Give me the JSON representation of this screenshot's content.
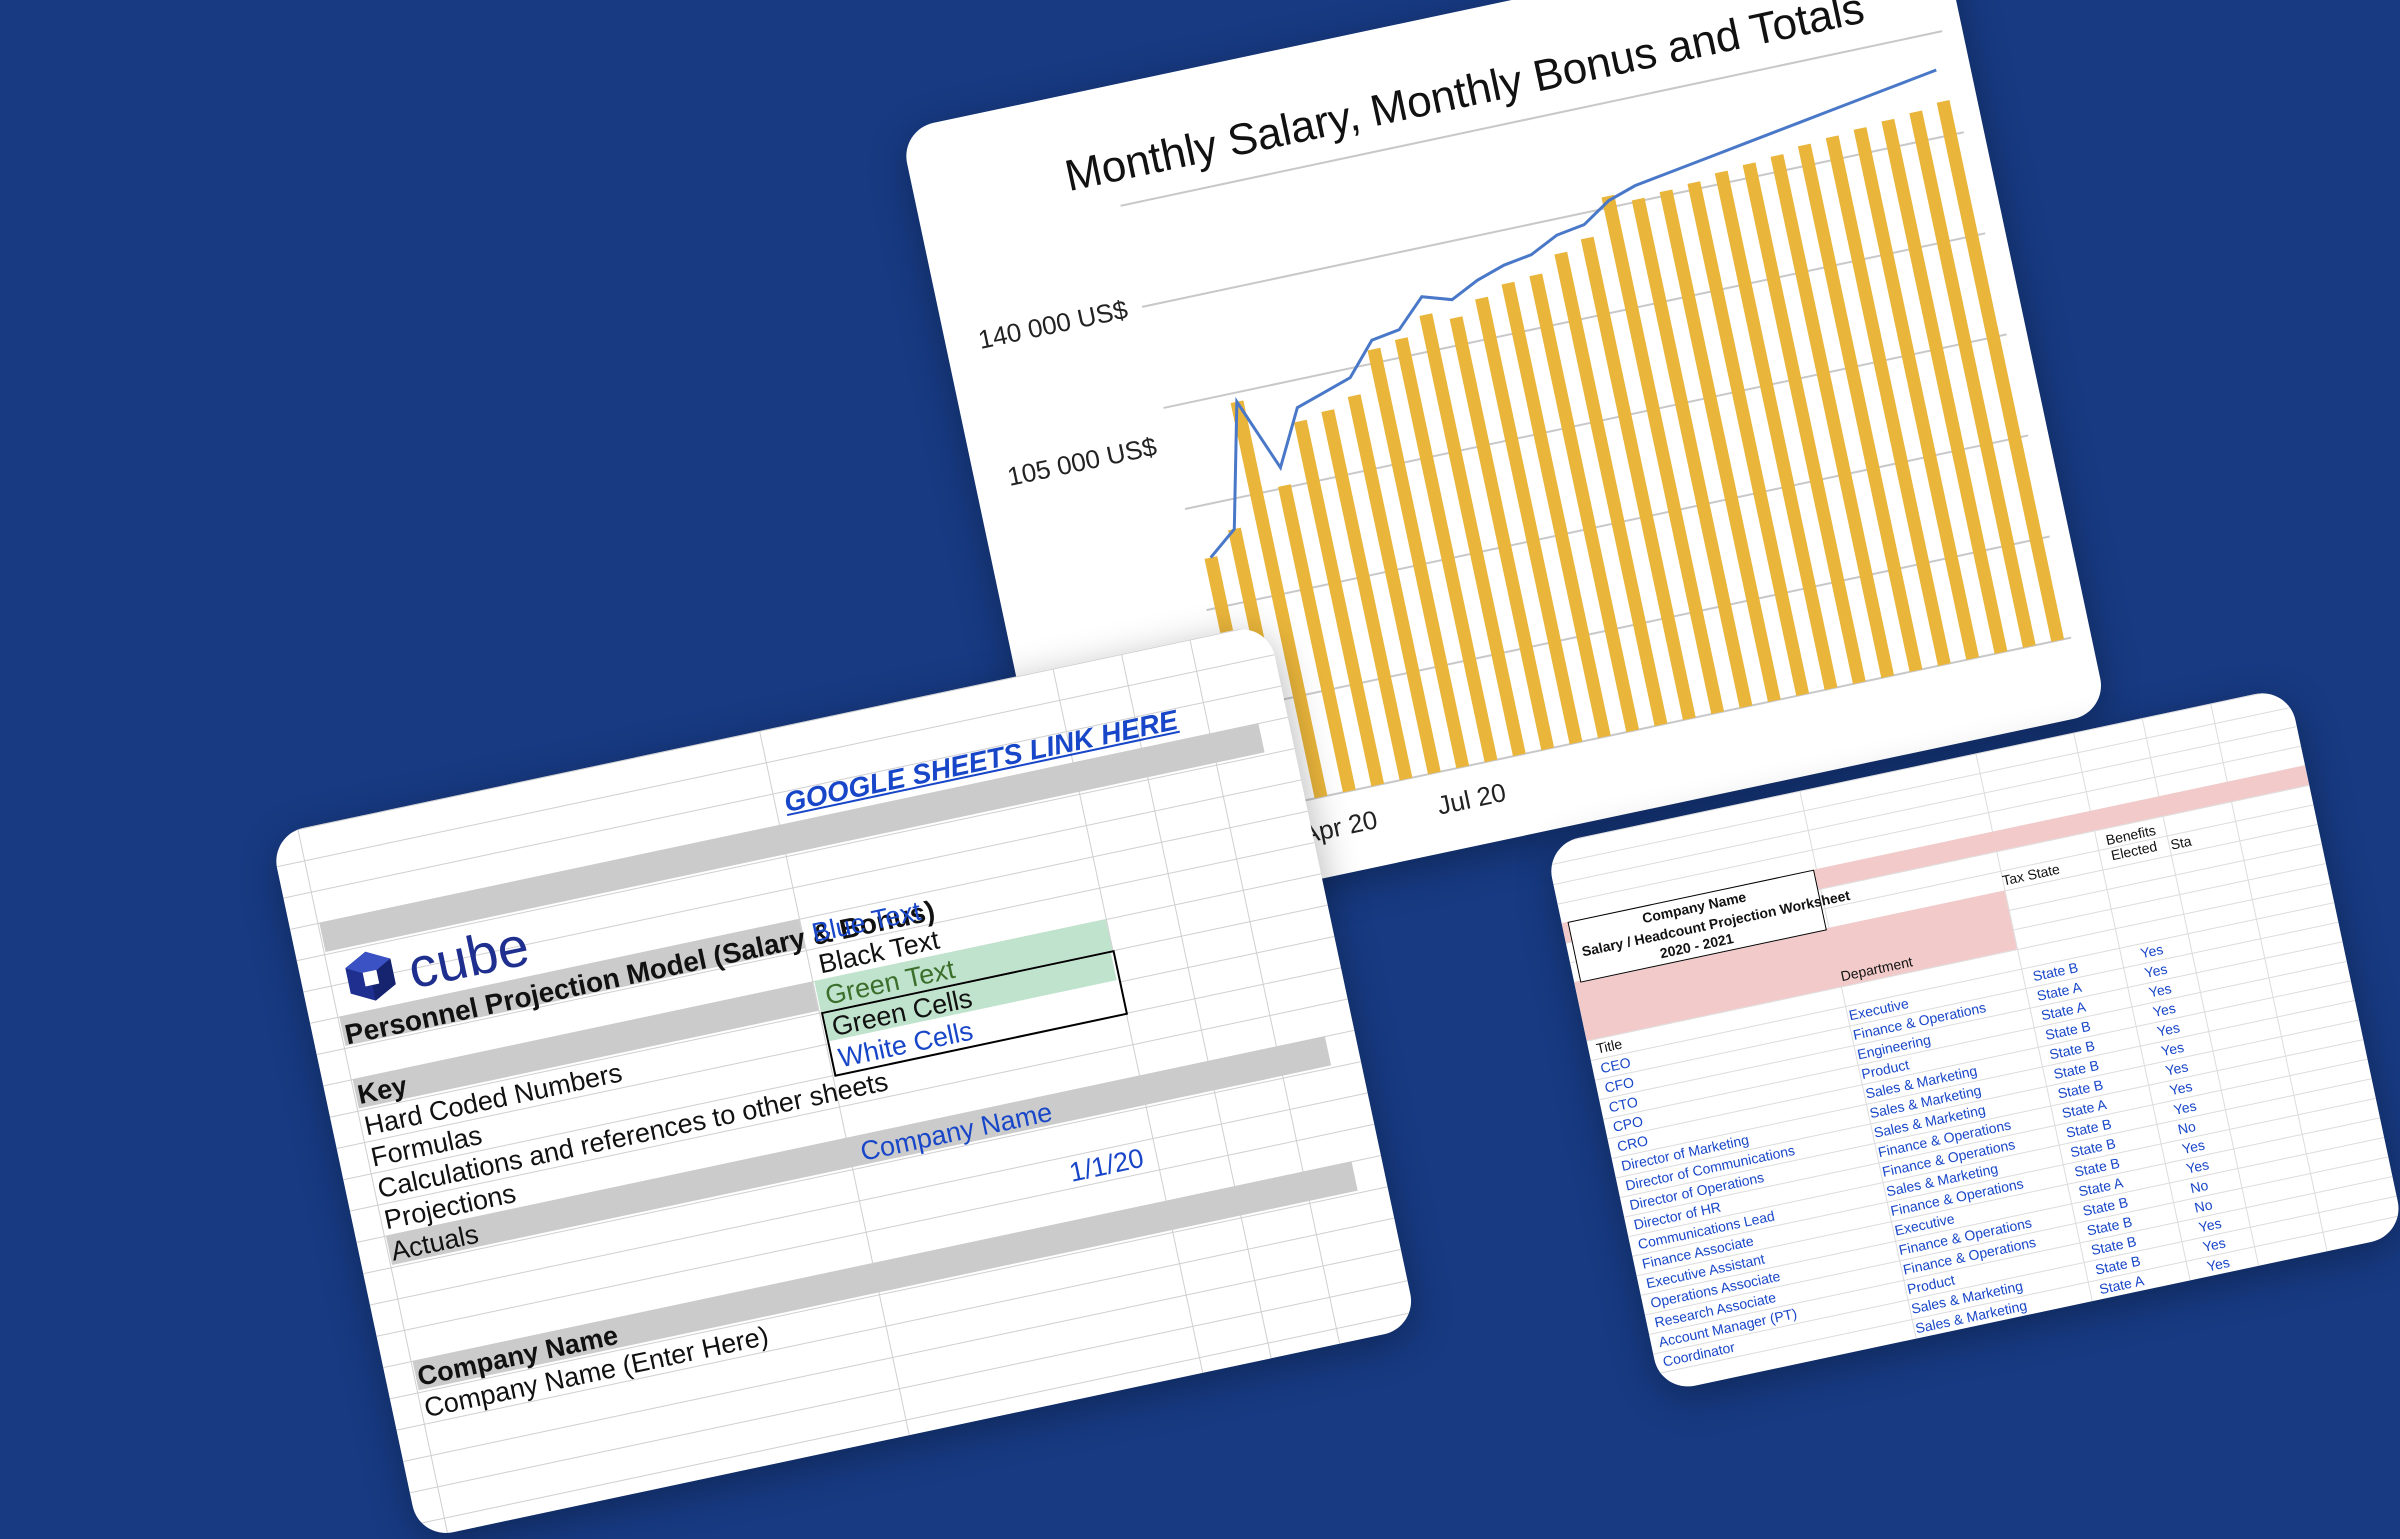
{
  "chart_data": {
    "type": "bar",
    "title": "Monthly Salary, Monthly Bonus and Totals",
    "y_tick_labels": [
      "140 000 US$",
      "105 000 US$"
    ],
    "x_tick_labels": [
      "Apr 20",
      "Jul 20"
    ],
    "colors": {
      "bars": "#e9b53b",
      "total_line": "#4a78c9",
      "bonus_line": "#e98a3b"
    },
    "series": [
      {
        "name": "",
        "type": "bar",
        "values": [
          96000,
          101000,
          128000,
          108000,
          121000,
          122000,
          124000,
          133000,
          134000,
          138000,
          136000,
          139000,
          141000,
          141500,
          145000,
          147000,
          155000,
          153000,
          153500,
          154000,
          155000,
          155500,
          156000,
          157000,
          157500,
          158000,
          158500,
          159000,
          160000
        ]
      },
      {
        "name": "",
        "type": "line",
        "values": [
          96000,
          101000,
          128000,
          112000,
          124000,
          126000,
          128000,
          135000,
          136000,
          142000,
          140000,
          143000,
          145000,
          146000,
          149000,
          150000,
          154000,
          156000,
          157000,
          158000,
          159000,
          160000,
          161000,
          162000,
          163000,
          164000,
          165000,
          166000,
          167000
        ]
      }
    ],
    "ylim": [
      40000,
      175000
    ]
  },
  "model_sheet": {
    "link": "GOOGLE SHEETS LINK HERE",
    "logo_text": "cube",
    "title": "Personnel Projection Model (Salary & Bonus)",
    "key_heading": "Key",
    "key_items": [
      "Hard Coded Numbers",
      "Formulas",
      "Calculations and references to other sheets",
      "Projections",
      "Actuals"
    ],
    "legend": [
      "Blue Text",
      "Black Text",
      "Green Text",
      "Green Cells",
      "White Cells"
    ],
    "company_heading": "Company Name",
    "company_value": "Company Name",
    "company_prompt": "Company Name (Enter Here)",
    "date_value": "1/1/20"
  },
  "headcount_sheet": {
    "company_label": "Company Name",
    "worksheet_title": "Salary / Headcount Projection Worksheet",
    "year_range": "2020 - 2021",
    "col_title": "Title",
    "col_department": "Department",
    "col_tax_state": "Tax State",
    "col_benefits": "Benefits Elected",
    "col_partial": "Sta",
    "rows": [
      {
        "title": "CEO",
        "dept": "Executive",
        "state": "State B",
        "benefits": "Yes"
      },
      {
        "title": "CFO",
        "dept": "Finance & Operations",
        "state": "State A",
        "benefits": "Yes"
      },
      {
        "title": "CTO",
        "dept": "Engineering",
        "state": "State A",
        "benefits": "Yes"
      },
      {
        "title": "CPO",
        "dept": "Product",
        "state": "State B",
        "benefits": "Yes"
      },
      {
        "title": "CRO",
        "dept": "Sales & Marketing",
        "state": "State B",
        "benefits": "Yes"
      },
      {
        "title": "Director of Marketing",
        "dept": "Sales & Marketing",
        "state": "State B",
        "benefits": "Yes"
      },
      {
        "title": "Director of Communications",
        "dept": "Sales & Marketing",
        "state": "State B",
        "benefits": "Yes"
      },
      {
        "title": "Director of Operations",
        "dept": "Finance & Operations",
        "state": "State A",
        "benefits": "Yes"
      },
      {
        "title": "Director of HR",
        "dept": "Finance & Operations",
        "state": "State B",
        "benefits": "Yes"
      },
      {
        "title": "Communications Lead",
        "dept": "Sales & Marketing",
        "state": "State B",
        "benefits": "No"
      },
      {
        "title": "Finance Associate",
        "dept": "Finance & Operations",
        "state": "State B",
        "benefits": "Yes"
      },
      {
        "title": "Executive Assistant",
        "dept": "Executive",
        "state": "State A",
        "benefits": "Yes"
      },
      {
        "title": "Operations Associate",
        "dept": "Finance & Operations",
        "state": "State B",
        "benefits": "No"
      },
      {
        "title": "Research Associate",
        "dept": "Finance & Operations",
        "state": "State B",
        "benefits": "No"
      },
      {
        "title": "Account Manager (PT)",
        "dept": "Product",
        "state": "State B",
        "benefits": "Yes"
      },
      {
        "title": "Coordinator",
        "dept": "Sales & Marketing",
        "state": "State B",
        "benefits": "Yes"
      },
      {
        "title": "",
        "dept": "Sales & Marketing",
        "state": "State A",
        "benefits": "Yes"
      },
      {
        "title": "",
        "dept": "",
        "state": "State B",
        "benefits": "No"
      }
    ]
  }
}
